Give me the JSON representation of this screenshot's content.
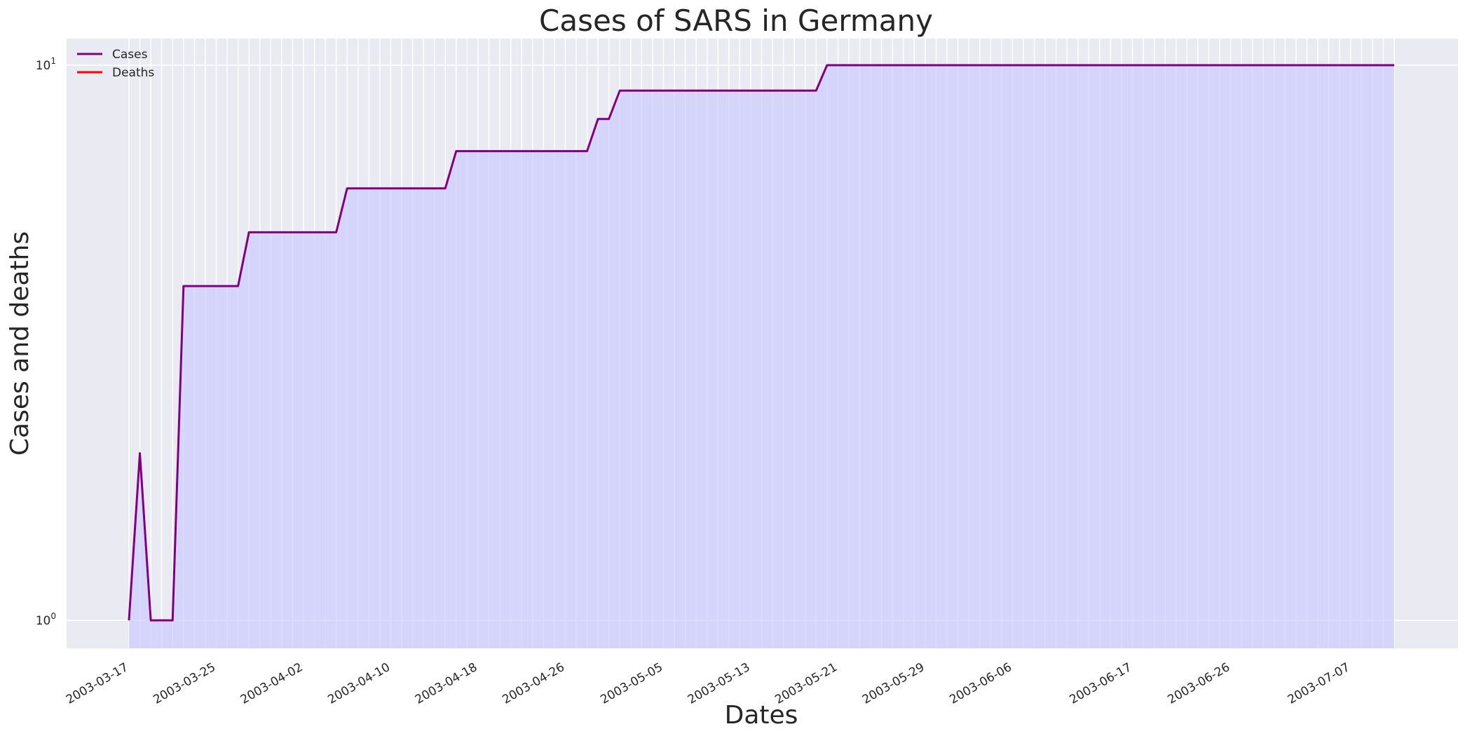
{
  "chart_data": {
    "type": "line",
    "title": "Cases of SARS in Germany",
    "xlabel": "Dates",
    "ylabel": "Cases and deaths",
    "yscale": "log",
    "ylim": [
      0.95,
      10.5
    ],
    "grid": true,
    "legend_position": "top-left",
    "x_tick_labels": [
      "2003-03-17",
      "2003-03-25",
      "2003-04-02",
      "2003-04-10",
      "2003-04-18",
      "2003-04-26",
      "2003-05-05",
      "2003-05-13",
      "2003-05-21",
      "2003-05-29",
      "2003-06-06",
      "2003-06-17",
      "2003-06-26",
      "2003-07-07"
    ],
    "y_ticks": [
      {
        "base": "10",
        "exp": "0",
        "value": 1
      },
      {
        "base": "10",
        "exp": "1",
        "value": 10
      }
    ],
    "series": [
      {
        "name": "Cases",
        "color": "#800080",
        "fill_color": "#ccccff",
        "points": [
          [
            "2003-03-17",
            1
          ],
          [
            "2003-03-18",
            2
          ],
          [
            "2003-03-19",
            1
          ],
          [
            "2003-03-20",
            1
          ],
          [
            "2003-03-21",
            1
          ],
          [
            "2003-03-22",
            4
          ],
          [
            "2003-03-23",
            4
          ],
          [
            "2003-03-24",
            4
          ],
          [
            "2003-03-25",
            4
          ],
          [
            "2003-03-26",
            4
          ],
          [
            "2003-03-27",
            4
          ],
          [
            "2003-03-28",
            5
          ],
          [
            "2003-03-29",
            5
          ],
          [
            "2003-03-30",
            5
          ],
          [
            "2003-03-31",
            5
          ],
          [
            "2003-04-01",
            5
          ],
          [
            "2003-04-02",
            5
          ],
          [
            "2003-04-03",
            5
          ],
          [
            "2003-04-04",
            5
          ],
          [
            "2003-04-05",
            5
          ],
          [
            "2003-04-06",
            6
          ],
          [
            "2003-04-07",
            6
          ],
          [
            "2003-04-08",
            6
          ],
          [
            "2003-04-09",
            6
          ],
          [
            "2003-04-10",
            6
          ],
          [
            "2003-04-11",
            6
          ],
          [
            "2003-04-12",
            6
          ],
          [
            "2003-04-13",
            6
          ],
          [
            "2003-04-14",
            6
          ],
          [
            "2003-04-15",
            6
          ],
          [
            "2003-04-16",
            7
          ],
          [
            "2003-04-17",
            7
          ],
          [
            "2003-04-18",
            7
          ],
          [
            "2003-04-19",
            7
          ],
          [
            "2003-04-20",
            7
          ],
          [
            "2003-04-21",
            7
          ],
          [
            "2003-04-22",
            7
          ],
          [
            "2003-04-23",
            7
          ],
          [
            "2003-04-24",
            7
          ],
          [
            "2003-04-25",
            7
          ],
          [
            "2003-04-26",
            7
          ],
          [
            "2003-04-27",
            7
          ],
          [
            "2003-04-28",
            7
          ],
          [
            "2003-04-29",
            8
          ],
          [
            "2003-04-30",
            8
          ],
          [
            "2003-05-01",
            9
          ],
          [
            "2003-05-02",
            9
          ],
          [
            "2003-05-03",
            9
          ],
          [
            "2003-05-04",
            9
          ],
          [
            "2003-05-05",
            9
          ],
          [
            "2003-05-06",
            9
          ],
          [
            "2003-05-07",
            9
          ],
          [
            "2003-05-08",
            9
          ],
          [
            "2003-05-09",
            9
          ],
          [
            "2003-05-10",
            9
          ],
          [
            "2003-05-11",
            9
          ],
          [
            "2003-05-12",
            9
          ],
          [
            "2003-05-13",
            9
          ],
          [
            "2003-05-14",
            9
          ],
          [
            "2003-05-15",
            9
          ],
          [
            "2003-05-16",
            9
          ],
          [
            "2003-05-17",
            9
          ],
          [
            "2003-05-18",
            9
          ],
          [
            "2003-05-19",
            9
          ],
          [
            "2003-05-20",
            10
          ],
          [
            "2003-07-11",
            10
          ]
        ]
      },
      {
        "name": "Deaths",
        "color": "#ff0000",
        "points": []
      }
    ]
  }
}
